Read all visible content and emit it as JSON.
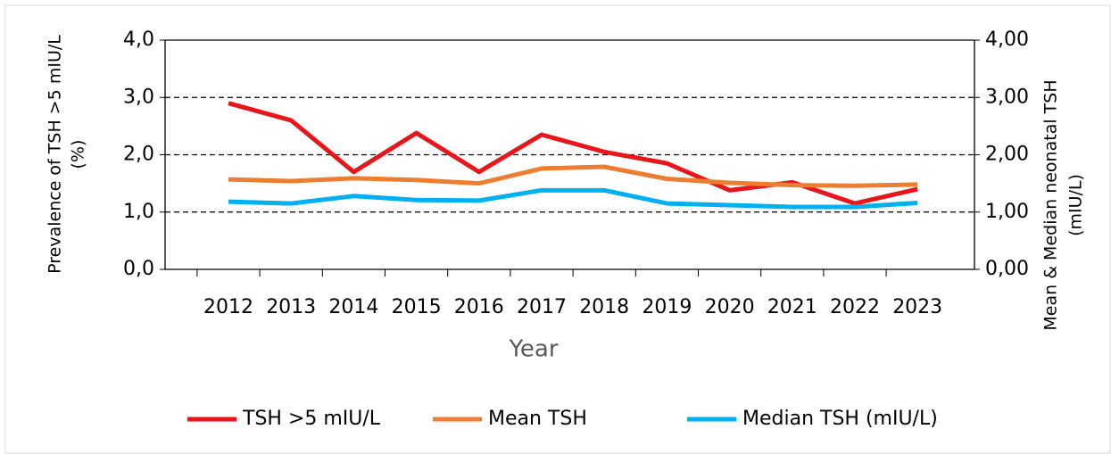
{
  "chart_data": {
    "type": "line",
    "xlabel": "Year",
    "ylabel": [
      "Prevalence of TSH >5 mIU/L",
      "(%)"
    ],
    "y2label": [
      "Mean & Median neonatal TSH",
      "(mIU/L)"
    ],
    "categories": [
      "2012",
      "2013",
      "2014",
      "2015",
      "2016",
      "2017",
      "2018",
      "2019",
      "2020",
      "2021",
      "2022",
      "2023"
    ],
    "series": [
      {
        "name": "TSH >5 mIU/L",
        "color": "#e8161b",
        "axis": "y",
        "values": [
          2.9,
          2.6,
          1.7,
          2.38,
          1.7,
          2.35,
          2.05,
          1.85,
          1.38,
          1.52,
          1.15,
          1.4
        ]
      },
      {
        "name": "Mean TSH",
        "color": "#ed7d31",
        "axis": "y2",
        "values": [
          1.57,
          1.54,
          1.59,
          1.56,
          1.5,
          1.76,
          1.79,
          1.58,
          1.51,
          1.47,
          1.46,
          1.48
        ]
      },
      {
        "name": "Median TSH (mIU/L)",
        "color": "#00b0f0",
        "axis": "y2",
        "values": [
          1.18,
          1.15,
          1.28,
          1.21,
          1.2,
          1.38,
          1.38,
          1.15,
          1.12,
          1.09,
          1.09,
          1.16
        ]
      }
    ],
    "ylim": [
      0,
      4
    ],
    "yticks": [
      {
        "value": 0,
        "label": "0,0"
      },
      {
        "value": 1,
        "label": "1,0"
      },
      {
        "value": 2,
        "label": "2,0"
      },
      {
        "value": 3,
        "label": "3,0"
      },
      {
        "value": 4,
        "label": "4,0"
      }
    ],
    "y2lim": [
      0,
      4
    ],
    "y2ticks": [
      {
        "value": 0,
        "label": "0,00"
      },
      {
        "value": 1,
        "label": "1,00"
      },
      {
        "value": 2,
        "label": "2,00"
      },
      {
        "value": 3,
        "label": "3,00"
      },
      {
        "value": 4,
        "label": "4,00"
      }
    ],
    "grid": true,
    "legend": "bottom"
  }
}
